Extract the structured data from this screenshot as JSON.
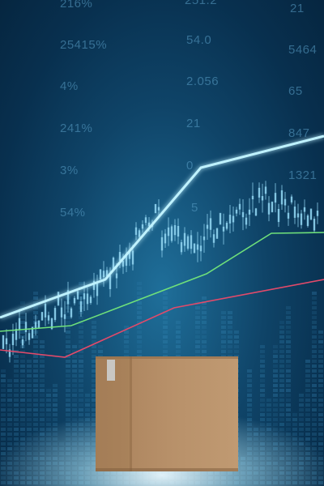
{
  "background_numbers": [
    "216%",
    "251.2",
    "21",
    "25415%",
    "54.0",
    "5464",
    "4%",
    "2.056",
    "65",
    "241%",
    "21",
    "847",
    "3%",
    "0",
    "1321",
    "54%",
    "5"
  ],
  "colors": {
    "main_trend": "#bff2ff",
    "green_line": "#6fe07a",
    "red_line": "#e24a6a",
    "candles": "#8fd3f0",
    "box": "#b38a5e"
  },
  "objects": {
    "box": "cardboard-box"
  }
}
